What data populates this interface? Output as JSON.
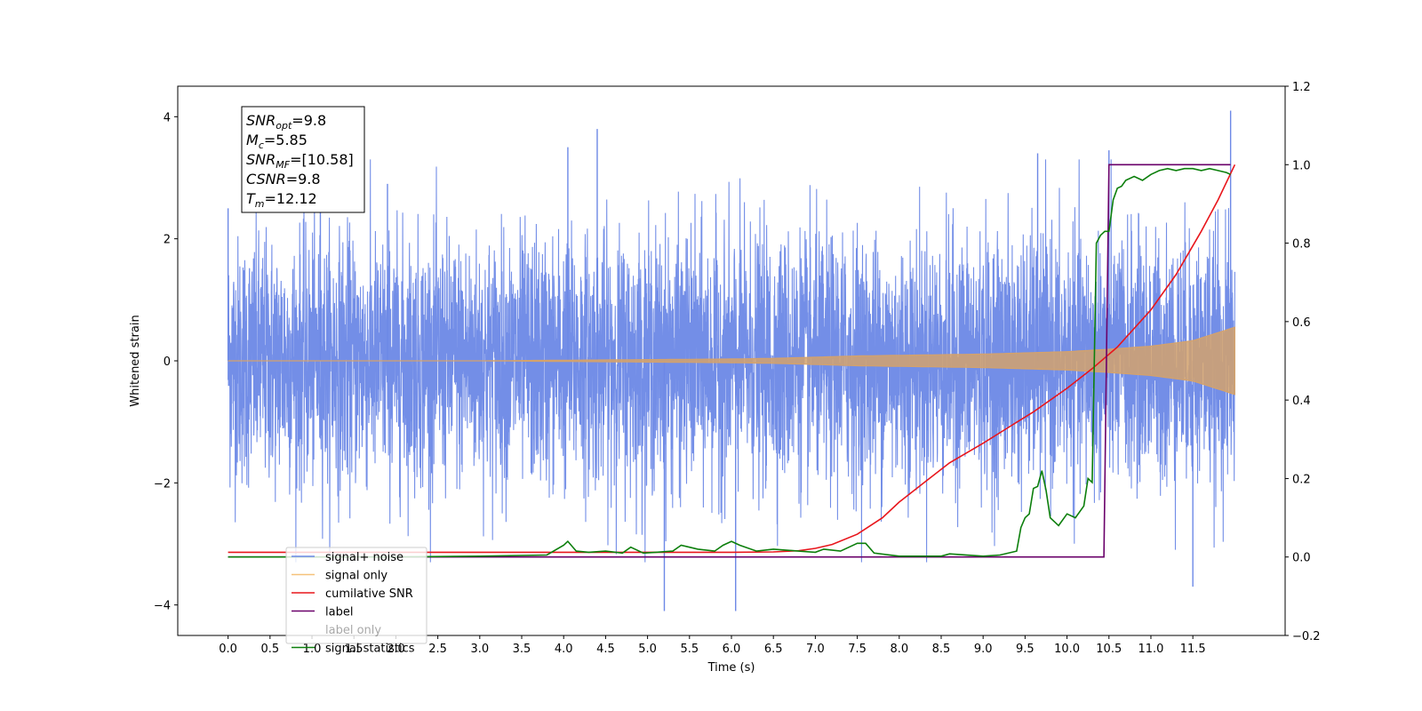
{
  "chart_data": {
    "type": "line",
    "xlabel": "Time (s)",
    "ylabel_left": "Whitened strain",
    "ylabel_right": "",
    "xlim": [
      -0.6,
      12.6
    ],
    "ylim_left": [
      -4.5,
      4.5
    ],
    "ylim_right": [
      -0.2,
      1.2
    ],
    "x_ticks": [
      0.0,
      0.5,
      1.0,
      1.5,
      2.0,
      2.5,
      3.0,
      3.5,
      4.0,
      4.5,
      5.0,
      5.5,
      6.0,
      6.5,
      7.0,
      7.5,
      8.0,
      8.5,
      9.0,
      9.5,
      10.0,
      10.5,
      11.0,
      11.5
    ],
    "x_tick_labels": [
      "0.0",
      "0.5",
      "1.0",
      "1.5",
      "2.0",
      "2.5",
      "3.0",
      "3.5",
      "4.0",
      "4.5",
      "5.0",
      "5.5",
      "6.0",
      "6.5",
      "7.0",
      "7.5",
      "8.0",
      "8.5",
      "9.0",
      "9.5",
      "10.0",
      "10.5",
      "11.0",
      "11.5"
    ],
    "y_ticks_left": [
      -4,
      -2,
      0,
      2,
      4
    ],
    "y_tick_labels_left": [
      "−4",
      "−2",
      "0",
      "2",
      "4"
    ],
    "y_ticks_right": [
      -0.2,
      0.0,
      0.2,
      0.4,
      0.6,
      0.8,
      1.0,
      1.2
    ],
    "y_tick_labels_right": [
      "−0.2",
      "0.0",
      "0.2",
      "0.4",
      "0.6",
      "0.8",
      "1.0",
      "1.2"
    ],
    "grid": false,
    "legend_placement": "lower-left",
    "annotation": {
      "lines": [
        {
          "base": "SNR",
          "sub": "opt",
          "value": "=9.8"
        },
        {
          "base": "M",
          "sub": "c",
          "value": "=5.85"
        },
        {
          "base": "SNR",
          "sub": "MF",
          "value": "=[10.58]"
        },
        {
          "base": "CSNR",
          "sub": "",
          "value": "=9.8"
        },
        {
          "base": "T",
          "sub": "m",
          "value": "=12.12"
        }
      ]
    },
    "series": [
      {
        "name": "signal+ noise",
        "axis": "left",
        "color": "#6c88e6",
        "kind": "noise-band",
        "x_range": [
          0.0,
          12.0
        ],
        "typical_amplitude": 1.4,
        "peaks": [
          [
            0.0,
            2.5
          ],
          [
            1.1,
            2.8
          ],
          [
            1.9,
            2.9
          ],
          [
            4.05,
            3.5
          ],
          [
            4.4,
            3.8
          ],
          [
            5.2,
            -4.1
          ],
          [
            6.05,
            -4.1
          ],
          [
            9.65,
            3.4
          ],
          [
            10.5,
            3.45
          ],
          [
            11.5,
            -3.7
          ],
          [
            11.95,
            4.1
          ]
        ]
      },
      {
        "name": "signal only",
        "axis": "left",
        "color": "#d4a26c",
        "kind": "chirp-envelope",
        "x": [
          0,
          1,
          2,
          3,
          4,
          5,
          6,
          6.5,
          7,
          7.5,
          8,
          8.5,
          9,
          9.5,
          10,
          10.5,
          11,
          11.5,
          12
        ],
        "amplitude": [
          0.0,
          0.0,
          0.0,
          0.0,
          0.01,
          0.02,
          0.03,
          0.04,
          0.06,
          0.08,
          0.09,
          0.1,
          0.11,
          0.13,
          0.15,
          0.19,
          0.24,
          0.33,
          0.55
        ]
      },
      {
        "name": "cumilative SNR",
        "axis": "right",
        "color": "#e8161c",
        "x": [
          0,
          0.5,
          1,
          2,
          3,
          4,
          5,
          6,
          6.5,
          6.8,
          7,
          7.2,
          7.5,
          7.8,
          8,
          8.3,
          8.6,
          9,
          9.3,
          9.6,
          10,
          10.3,
          10.6,
          11,
          11.3,
          11.6,
          11.8,
          12
        ],
        "y": [
          0.012,
          0.012,
          0.012,
          0.012,
          0.012,
          0.012,
          0.012,
          0.012,
          0.013,
          0.016,
          0.022,
          0.032,
          0.058,
          0.1,
          0.14,
          0.19,
          0.24,
          0.29,
          0.33,
          0.37,
          0.43,
          0.48,
          0.535,
          0.63,
          0.72,
          0.83,
          0.91,
          1.0
        ]
      },
      {
        "name": "label",
        "axis": "right",
        "color": "#6a006a",
        "x": [
          0.0,
          10.44,
          10.44,
          10.5,
          11.95
        ],
        "y": [
          0.0,
          0.0,
          0.0,
          1.0,
          1.0
        ]
      },
      {
        "name": "label only",
        "axis": "right",
        "color": "#ffffff",
        "x": [],
        "y": []
      },
      {
        "name": "signal statistics",
        "axis": "right",
        "color": "#0c7f0c",
        "x": [
          0,
          0.5,
          1,
          2,
          3,
          3.8,
          4.0,
          4.05,
          4.15,
          4.3,
          4.5,
          4.7,
          4.8,
          4.95,
          5.1,
          5.3,
          5.4,
          5.5,
          5.6,
          5.8,
          5.9,
          6.0,
          6.1,
          6.3,
          6.5,
          6.8,
          7.0,
          7.1,
          7.3,
          7.4,
          7.5,
          7.6,
          7.7,
          8.0,
          8.3,
          8.5,
          8.6,
          9.0,
          9.2,
          9.4,
          9.45,
          9.5,
          9.55,
          9.6,
          9.65,
          9.7,
          9.75,
          9.8,
          9.9,
          10.0,
          10.1,
          10.2,
          10.25,
          10.3,
          10.35,
          10.4,
          10.45,
          10.5,
          10.55,
          10.6,
          10.65,
          10.7,
          10.8,
          10.9,
          11.0,
          11.1,
          11.2,
          11.3,
          11.4,
          11.5,
          11.6,
          11.7,
          11.8,
          11.9,
          11.95
        ],
        "y": [
          0.0,
          0.0,
          0.0,
          0.0,
          0.002,
          0.005,
          0.03,
          0.04,
          0.015,
          0.012,
          0.015,
          0.01,
          0.025,
          0.01,
          0.012,
          0.015,
          0.03,
          0.025,
          0.02,
          0.015,
          0.03,
          0.04,
          0.03,
          0.015,
          0.02,
          0.015,
          0.012,
          0.02,
          0.015,
          0.025,
          0.035,
          0.035,
          0.01,
          0.002,
          0.002,
          0.002,
          0.008,
          0.002,
          0.005,
          0.015,
          0.075,
          0.1,
          0.11,
          0.175,
          0.18,
          0.22,
          0.17,
          0.1,
          0.08,
          0.11,
          0.1,
          0.13,
          0.2,
          0.19,
          0.8,
          0.82,
          0.83,
          0.83,
          0.91,
          0.94,
          0.945,
          0.96,
          0.97,
          0.96,
          0.975,
          0.985,
          0.99,
          0.985,
          0.99,
          0.99,
          0.985,
          0.99,
          0.985,
          0.98,
          0.975
        ]
      }
    ]
  }
}
